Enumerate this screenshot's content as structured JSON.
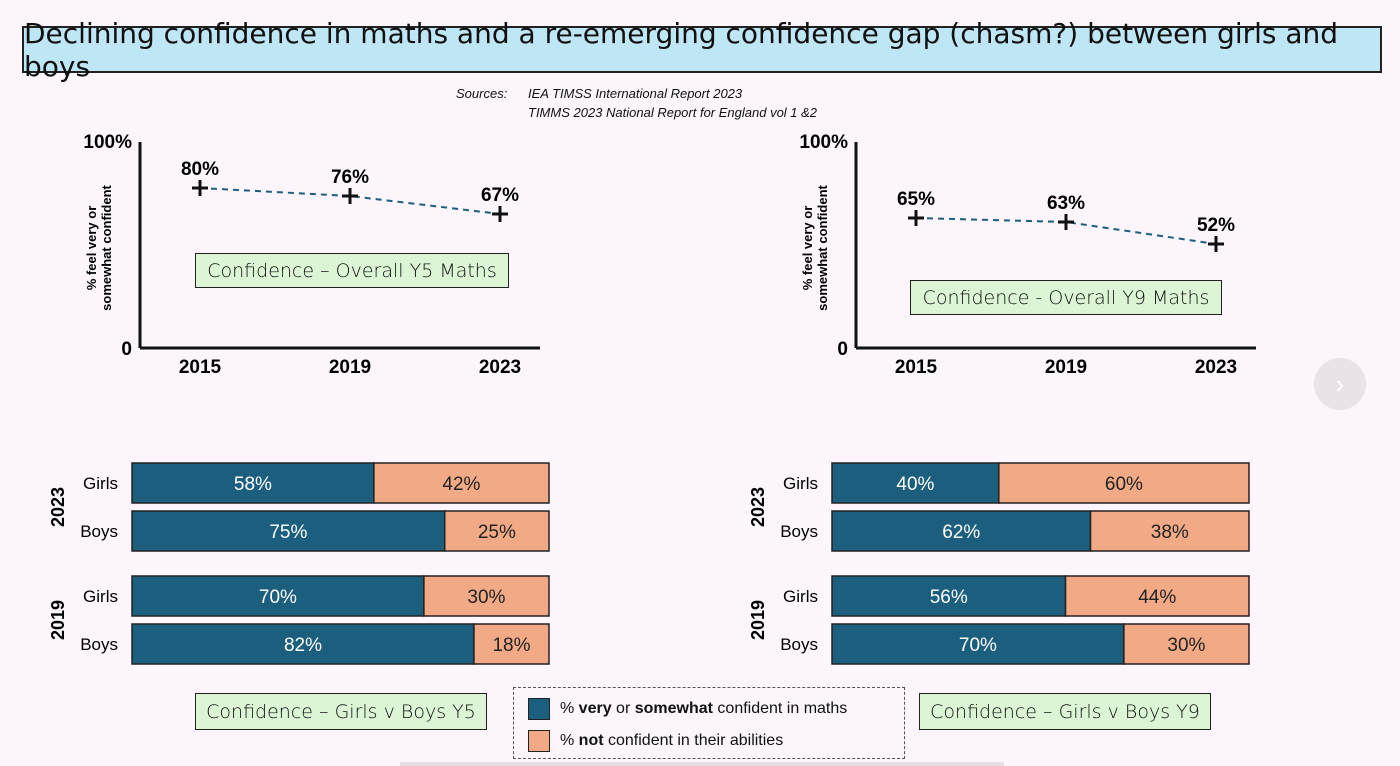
{
  "title": "Declining confidence in maths and a re-emerging confidence gap (chasm?) between girls and boys",
  "sources": {
    "label": "Sources:",
    "items": [
      "IEA TIMSS International Report 2023",
      "TIMMS 2023 National Report for England vol 1 &2"
    ]
  },
  "colors": {
    "confident": "#1b5e7e",
    "not_confident": "#f1aa85",
    "box_green": "#dcf6d5",
    "banner": "#bfe6f4"
  },
  "legend": {
    "row1_pre": "% ",
    "row1_bold1": "very",
    "row1_mid": " or ",
    "row1_bold2": "somewhat",
    "row1_post": " confident in maths",
    "row2_pre": "% ",
    "row2_bold": "not",
    "row2_post": " confident in their abilities"
  },
  "chart_data": [
    {
      "type": "line",
      "box_label": "Confidence – Overall Y5 Maths",
      "ylabel_line1": "% feel very or",
      "ylabel_line2": "somewhat confident",
      "ytick_top": "100%",
      "ytick_bottom": "0",
      "ylim": [
        0,
        100
      ],
      "categories": [
        "2015",
        "2019",
        "2023"
      ],
      "values": [
        80,
        76,
        67
      ],
      "labels": [
        "80%",
        "76%",
        "67%"
      ]
    },
    {
      "type": "line",
      "box_label": "Confidence - Overall Y9 Maths",
      "ylabel_line1": "% feel very or",
      "ylabel_line2": "somewhat confident",
      "ytick_top": "100%",
      "ytick_bottom": "0",
      "ylim": [
        0,
        100
      ],
      "categories": [
        "2015",
        "2019",
        "2023"
      ],
      "values": [
        65,
        63,
        52
      ],
      "labels": [
        "65%",
        "63%",
        "52%"
      ]
    },
    {
      "type": "bar",
      "stacked": true,
      "orientation": "horizontal",
      "box_label": "Confidence – Girls v Boys Y5",
      "groups": [
        {
          "year": "2023",
          "rows": [
            {
              "name": "Girls",
              "confident": 58,
              "not": 42,
              "confident_label": "58%",
              "not_label": "42%"
            },
            {
              "name": "Boys",
              "confident": 75,
              "not": 25,
              "confident_label": "75%",
              "not_label": "25%"
            }
          ]
        },
        {
          "year": "2019",
          "rows": [
            {
              "name": "Girls",
              "confident": 70,
              "not": 30,
              "confident_label": "70%",
              "not_label": "30%"
            },
            {
              "name": "Boys",
              "confident": 82,
              "not": 18,
              "confident_label": "82%",
              "not_label": "18%"
            }
          ]
        }
      ]
    },
    {
      "type": "bar",
      "stacked": true,
      "orientation": "horizontal",
      "box_label": "Confidence – Girls v Boys Y9",
      "groups": [
        {
          "year": "2023",
          "rows": [
            {
              "name": "Girls",
              "confident": 40,
              "not": 60,
              "confident_label": "40%",
              "not_label": "60%"
            },
            {
              "name": "Boys",
              "confident": 62,
              "not": 38,
              "confident_label": "62%",
              "not_label": "38%"
            }
          ]
        },
        {
          "year": "2019",
          "rows": [
            {
              "name": "Girls",
              "confident": 56,
              "not": 44,
              "confident_label": "56%",
              "not_label": "44%"
            },
            {
              "name": "Boys",
              "confident": 70,
              "not": 30,
              "confident_label": "70%",
              "not_label": "30%"
            }
          ]
        }
      ]
    }
  ],
  "nav": {
    "next_symbol": "›"
  }
}
